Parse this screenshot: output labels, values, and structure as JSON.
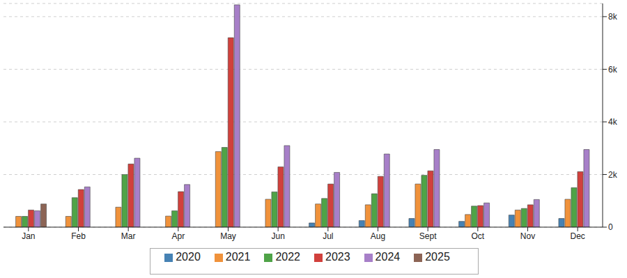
{
  "chart_data": {
    "type": "bar",
    "categories": [
      "Jan",
      "Feb",
      "Mar",
      "Apr",
      "May",
      "Jun",
      "Jul",
      "Aug",
      "Sept",
      "Oct",
      "Nov",
      "Dec"
    ],
    "series": [
      {
        "name": "2020",
        "color": "#4682b4",
        "values": [
          null,
          null,
          null,
          null,
          null,
          null,
          160,
          250,
          330,
          220,
          460,
          330
        ]
      },
      {
        "name": "2021",
        "color": "#f0923b",
        "values": [
          410,
          410,
          760,
          420,
          2870,
          1060,
          880,
          850,
          1640,
          480,
          650,
          1060
        ]
      },
      {
        "name": "2022",
        "color": "#4fa347",
        "values": [
          410,
          1120,
          2000,
          620,
          3030,
          1340,
          1090,
          1270,
          1970,
          800,
          710,
          1500
        ]
      },
      {
        "name": "2023",
        "color": "#d1403c",
        "values": [
          650,
          1430,
          2400,
          1350,
          7200,
          2290,
          1640,
          1930,
          2140,
          820,
          850,
          2110
        ]
      },
      {
        "name": "2024",
        "color": "#a77fc8",
        "values": [
          620,
          1530,
          2620,
          1620,
          8450,
          3100,
          2080,
          2780,
          2950,
          920,
          1050,
          2950
        ]
      },
      {
        "name": "2025",
        "color": "#8c6455",
        "values": [
          880,
          null,
          null,
          null,
          null,
          null,
          null,
          null,
          null,
          null,
          null,
          null
        ]
      }
    ],
    "ylim": [
      0,
      8500
    ],
    "yticks": [
      0,
      {
        "value": 2000,
        "label": "2k"
      },
      {
        "value": 4000,
        "label": "4k"
      },
      {
        "value": 6000,
        "label": "6k"
      },
      {
        "value": 8000,
        "label": "8k"
      }
    ],
    "grid": true,
    "legend": "bottom"
  }
}
